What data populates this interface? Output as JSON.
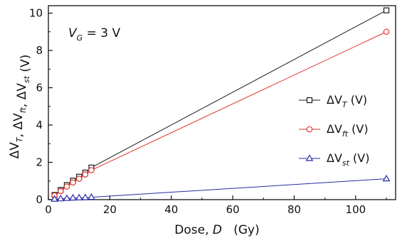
{
  "chart_data": {
    "type": "line",
    "annotation": {
      "prefix": "V",
      "sub": "G",
      "suffix": " = 3 V"
    },
    "xlabel": {
      "text": "Dose, ",
      "var": "D",
      "unit": "   (Gy)"
    },
    "ylabel_parts": [
      {
        "base": "ΔV",
        "sub": "T"
      },
      {
        "sep": ", "
      },
      {
        "base": "ΔV",
        "sub": "ft"
      },
      {
        "sep": ", "
      },
      {
        "base": "ΔV",
        "sub": "st"
      },
      {
        "sep": " (V)"
      }
    ],
    "xlim": [
      0,
      113
    ],
    "ylim": [
      0,
      10.4
    ],
    "xticks": [
      0,
      20,
      40,
      60,
      80,
      100
    ],
    "yticks": [
      0,
      2,
      4,
      6,
      8,
      10
    ],
    "grid": false,
    "legend_position": "center-right",
    "x": [
      2,
      4,
      6,
      8,
      10,
      12,
      14,
      110
    ],
    "series": [
      {
        "name": "ΔV",
        "sub": "T",
        "unit": " (V)",
        "marker": "square",
        "color": "#1a1a1a",
        "values": [
          0.25,
          0.52,
          0.78,
          1.02,
          1.23,
          1.45,
          1.72,
          10.15
        ]
      },
      {
        "name": "ΔV",
        "sub": "ft",
        "unit": " (V)",
        "marker": "circle",
        "color": "#e0312a",
        "values": [
          0.22,
          0.46,
          0.7,
          0.92,
          1.12,
          1.35,
          1.58,
          9.0
        ]
      },
      {
        "name": "ΔV",
        "sub": "st",
        "unit": " (V)",
        "marker": "triangle",
        "color": "#2a2aa8",
        "values": [
          0.03,
          0.05,
          0.07,
          0.09,
          0.1,
          0.11,
          0.13,
          1.12
        ]
      }
    ]
  }
}
